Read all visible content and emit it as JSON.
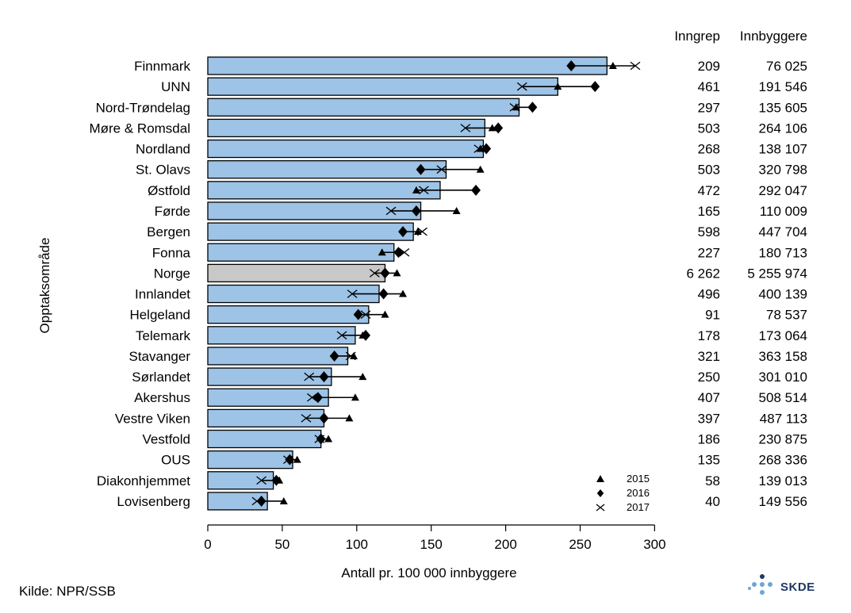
{
  "chart_data": {
    "type": "bar",
    "title": "",
    "xlabel": "Antall pr. 100 000 innbyggere",
    "ylabel": "Opptaksområde",
    "xlim": [
      0,
      300
    ],
    "xticks": [
      "0",
      "50",
      "100",
      "150",
      "200",
      "250",
      "300"
    ],
    "xtick_values": [
      0,
      50,
      100,
      150,
      200,
      250,
      300
    ],
    "orientation": "horizontal",
    "grid": false,
    "legend_position": "bottom-right",
    "categories": [
      "Finnmark",
      "UNN",
      "Nord-Trøndelag",
      "Møre & Romsdal",
      "Nordland",
      "St. Olavs",
      "Østfold",
      "Førde",
      "Bergen",
      "Fonna",
      "Norge",
      "Innlandet",
      "Helgeland",
      "Telemark",
      "Stavanger",
      "Sørlandet",
      "Akershus",
      "Vestre Viken",
      "Vestfold",
      "OUS",
      "Diakonhjemmet",
      "Lovisenberg"
    ],
    "highlight_category": "Norge",
    "bar_color": "#9dc3e6",
    "highlight_color": "#c8c8c8",
    "values": [
      268,
      235,
      209,
      186,
      185,
      160,
      156,
      143,
      138,
      125,
      119,
      115,
      108,
      99,
      94,
      83,
      81,
      78,
      76,
      57,
      44,
      40
    ],
    "series": [
      {
        "name": "2015",
        "marker": "triangle",
        "values": [
          272,
          235,
          207,
          191,
          183,
          183,
          140,
          167,
          141,
          117,
          127,
          131,
          119,
          104,
          98,
          104,
          99,
          95,
          81,
          60,
          48,
          51
        ]
      },
      {
        "name": "2016",
        "marker": "diamond",
        "values": [
          244,
          260,
          218,
          195,
          187,
          143,
          180,
          140,
          131,
          128,
          119,
          118,
          101,
          106,
          85,
          78,
          74,
          78,
          76,
          55,
          46,
          36
        ]
      },
      {
        "name": "2017",
        "marker": "x",
        "values": [
          287,
          211,
          206,
          173,
          182,
          157,
          145,
          123,
          144,
          132,
          112,
          97,
          106,
          90,
          96,
          68,
          70,
          66,
          75,
          54,
          36,
          33
        ]
      }
    ]
  },
  "table": {
    "headers": [
      "Inngrep",
      "Innbyggere"
    ],
    "inngrep": [
      "209",
      "461",
      "297",
      "503",
      "268",
      "503",
      "472",
      "165",
      "598",
      "227",
      "6 262",
      "496",
      "91",
      "178",
      "321",
      "250",
      "407",
      "397",
      "186",
      "135",
      "58",
      "40"
    ],
    "innbyggere": [
      "76 025",
      "191 546",
      "135 605",
      "264 106",
      "138 107",
      "320 798",
      "292 047",
      "110 009",
      "447 704",
      "180 713",
      "5 255 974",
      "400 139",
      "78 537",
      "173 064",
      "363 158",
      "301 010",
      "508 514",
      "487 113",
      "230 875",
      "268 336",
      "139 013",
      "149 556"
    ]
  },
  "source": "Kilde: NPR/SSB",
  "logo": {
    "text": "SKDE",
    "color": "#1f3864",
    "accent": "#6fa5d6"
  }
}
